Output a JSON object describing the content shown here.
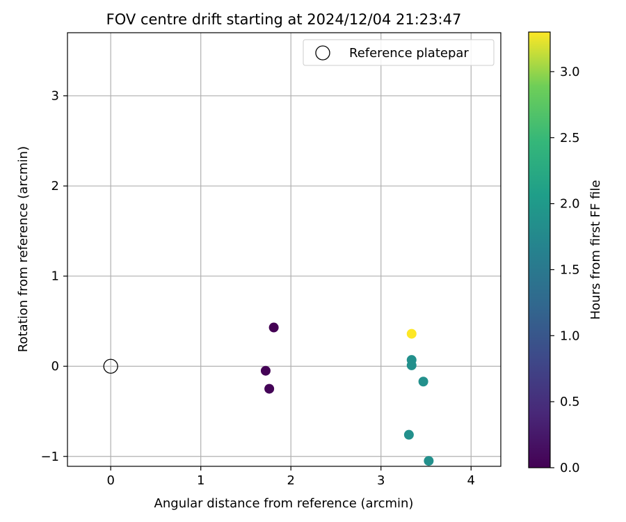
{
  "chart_data": {
    "type": "scatter",
    "title": "FOV centre drift starting at 2024/12/04 21:23:47",
    "xlabel": "Angular distance from reference (arcmin)",
    "ylabel": "Rotation from reference (arcmin)",
    "xlim": [
      -0.48,
      4.33
    ],
    "ylim": [
      -1.11,
      3.7
    ],
    "xticks": [
      0,
      1,
      2,
      3,
      4
    ],
    "yticks": [
      -1,
      0,
      1,
      2,
      3
    ],
    "grid": true,
    "legend": {
      "position": "top-right",
      "entries": [
        "Reference platepar"
      ]
    },
    "reference": {
      "name": "Reference platepar",
      "x": 0,
      "y": 0
    },
    "colorbar": {
      "label": "Hours from first FF file",
      "colormap": "viridis",
      "range": [
        0.0,
        3.3
      ],
      "ticks": [
        "0.0",
        "0.5",
        "1.0",
        "1.5",
        "2.0",
        "2.5",
        "3.0"
      ]
    },
    "points": [
      {
        "x": 1.81,
        "y": 0.43,
        "hours": 0.0
      },
      {
        "x": 1.72,
        "y": -0.05,
        "hours": 0.02
      },
      {
        "x": 1.76,
        "y": -0.25,
        "hours": 0.03
      },
      {
        "x": 3.34,
        "y": 0.36,
        "hours": 3.3
      },
      {
        "x": 3.34,
        "y": 0.07,
        "hours": 1.85
      },
      {
        "x": 3.34,
        "y": 0.01,
        "hours": 1.85
      },
      {
        "x": 3.47,
        "y": -0.17,
        "hours": 1.85
      },
      {
        "x": 3.31,
        "y": -0.76,
        "hours": 1.85
      },
      {
        "x": 3.53,
        "y": -1.05,
        "hours": 1.85
      }
    ]
  }
}
